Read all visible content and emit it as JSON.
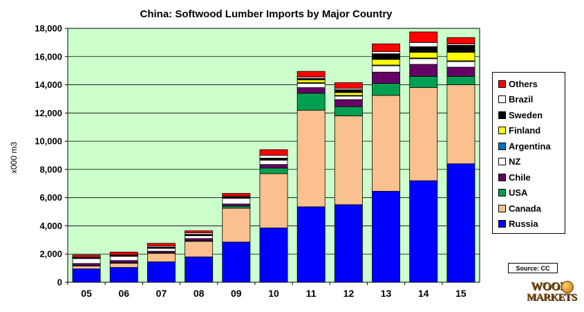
{
  "chart_data": {
    "type": "bar",
    "stacked": true,
    "title": "China: Softwood Lumber Imports by Major Country",
    "ylabel": "x000 m3",
    "xlabel": "",
    "categories": [
      "05",
      "06",
      "07",
      "08",
      "09",
      "10",
      "11",
      "12",
      "13",
      "14",
      "15"
    ],
    "ylim": [
      0,
      18000
    ],
    "yticks": [
      "0",
      "2,000",
      "4,000",
      "6,000",
      "8,000",
      "10,000",
      "12,000",
      "14,000",
      "16,000",
      "18,000"
    ],
    "grid": true,
    "legend_position": "right",
    "series": [
      {
        "name": "Russia",
        "color": "#0000ff",
        "values": [
          950,
          1050,
          1450,
          1800,
          2850,
          3850,
          5350,
          5500,
          6450,
          7200,
          8400
        ]
      },
      {
        "name": "Canada",
        "color": "#fac090",
        "values": [
          200,
          300,
          600,
          1100,
          2400,
          3850,
          6850,
          6300,
          6800,
          6600,
          5600
        ]
      },
      {
        "name": "USA",
        "color": "#00a050",
        "values": [
          30,
          40,
          50,
          50,
          150,
          400,
          1200,
          650,
          850,
          800,
          600
        ]
      },
      {
        "name": "Chile",
        "color": "#660066",
        "values": [
          150,
          150,
          100,
          150,
          150,
          250,
          400,
          500,
          800,
          850,
          650
        ]
      },
      {
        "name": "NZ",
        "color": "#ffffff",
        "values": [
          350,
          300,
          200,
          200,
          400,
          300,
          300,
          250,
          450,
          400,
          400
        ]
      },
      {
        "name": "Argentina",
        "color": "#0070c0",
        "values": [
          30,
          30,
          30,
          30,
          30,
          30,
          50,
          50,
          50,
          50,
          50
        ]
      },
      {
        "name": "Finland",
        "color": "#ffff00",
        "values": [
          20,
          20,
          20,
          20,
          20,
          20,
          200,
          200,
          400,
          400,
          600
        ]
      },
      {
        "name": "Sweden",
        "color": "#000000",
        "values": [
          30,
          30,
          30,
          50,
          50,
          100,
          100,
          200,
          400,
          400,
          500
        ]
      },
      {
        "name": "Brazil",
        "color": "#ffffff",
        "values": [
          20,
          20,
          80,
          100,
          50,
          200,
          100,
          100,
          150,
          300,
          100
        ]
      },
      {
        "name": "Others",
        "color": "#ff0000",
        "values": [
          150,
          200,
          200,
          150,
          200,
          400,
          400,
          400,
          550,
          750,
          450
        ]
      }
    ],
    "source_label": "Source:  CC"
  },
  "logo": {
    "line1": "WOOD",
    "line2": "MARKETS"
  }
}
